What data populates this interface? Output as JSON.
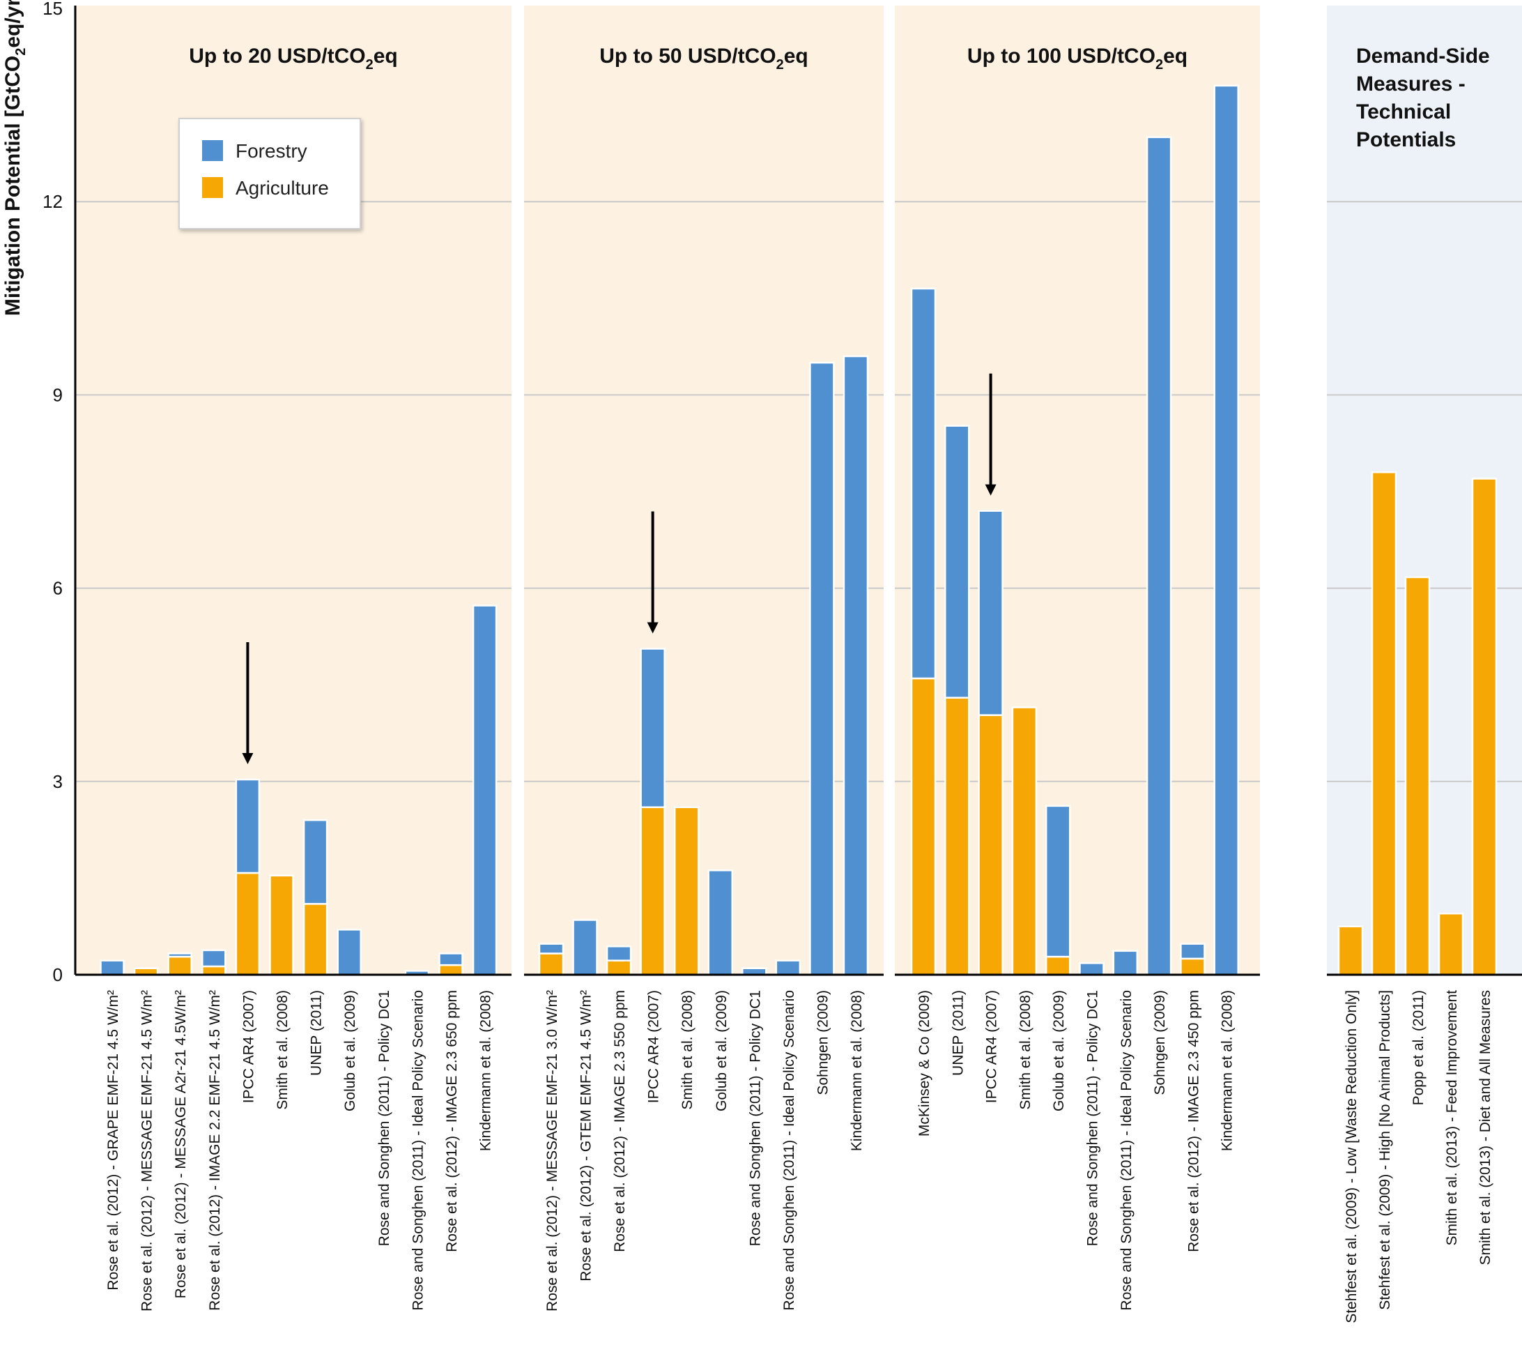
{
  "chart_data": {
    "type": "bar",
    "stacked": true,
    "ylabel_parts": [
      "Mitigation Potential [GtCO",
      "2",
      "eq/yr]"
    ],
    "ylim": [
      0,
      15
    ],
    "yticks": [
      0,
      3,
      6,
      9,
      12,
      15
    ],
    "grid": true,
    "legend": {
      "placement": "top-left",
      "entries": [
        {
          "name": "Forestry",
          "color": "#5090d0"
        },
        {
          "name": "Agriculture",
          "color": "#f6a704"
        }
      ]
    },
    "colors": {
      "forestry": "#5090d0",
      "agriculture": "#f6a704",
      "supply_bg": "#fdf1e1",
      "demand_bg": "#edf2f8"
    },
    "panels": [
      {
        "id": "usd20",
        "title_parts": [
          "Up to 20 USD/tCO",
          "2",
          "eq"
        ],
        "background": "supply",
        "arrow_on": "IPCC AR4 (2007)",
        "bars": [
          {
            "label": "Rose et al. (2012) - GRAPE EMF-21 4.5 W/m²",
            "agriculture": 0.0,
            "forestry": 0.22
          },
          {
            "label": "Rose et al. (2012) - MESSAGE EMF-21 4.5 W/m²",
            "agriculture": 0.1,
            "forestry": 0.0
          },
          {
            "label": "Rose et al. (2012) - MESSAGE A2r-21 4.5W/m²",
            "agriculture": 0.28,
            "forestry": 0.05
          },
          {
            "label": "Rose et al. (2012) - IMAGE 2.2 EMF-21 4.5 W/m²",
            "agriculture": 0.13,
            "forestry": 0.25
          },
          {
            "label": "IPCC AR4 (2007)",
            "agriculture": 1.58,
            "forestry": 1.45
          },
          {
            "label": "Smith et al. (2008)",
            "agriculture": 1.54,
            "forestry": 0.0
          },
          {
            "label": "UNEP (2011)",
            "agriculture": 1.1,
            "forestry": 1.3
          },
          {
            "label": "Golub et al. (2009)",
            "agriculture": 0.0,
            "forestry": 0.7
          },
          {
            "label": "Rose and Songhen (2011) - Policy DC1",
            "agriculture": 0.0,
            "forestry": 0.0
          },
          {
            "label": "Rose and Songhen (2011) - Ideal Policy Scenario",
            "agriculture": 0.0,
            "forestry": 0.06
          },
          {
            "label": "Rose et al. (2012) - IMAGE 2.3 650 ppm",
            "agriculture": 0.15,
            "forestry": 0.18
          },
          {
            "label": "Kindermann et al. (2008)",
            "agriculture": 0.0,
            "forestry": 5.73
          }
        ]
      },
      {
        "id": "usd50",
        "title_parts": [
          "Up to 50 USD/tCO",
          "2",
          "eq"
        ],
        "background": "supply",
        "arrow_on": "IPCC AR4 (2007)",
        "bars": [
          {
            "label": "Rose et al. (2012) - MESSAGE EMF-21 3.0 W/m²",
            "agriculture": 0.33,
            "forestry": 0.15
          },
          {
            "label": "Rose et al. (2012) - GTEM EMF-21 4.5 W/m²",
            "agriculture": 0.0,
            "forestry": 0.85
          },
          {
            "label": "Rose et al. (2012) - IMAGE 2.3 550 ppm",
            "agriculture": 0.22,
            "forestry": 0.22
          },
          {
            "label": "IPCC AR4 (2007)",
            "agriculture": 2.6,
            "forestry": 2.46
          },
          {
            "label": "Smith et al. (2008)",
            "agriculture": 2.6,
            "forestry": 0.0
          },
          {
            "label": "Golub et al. (2009)",
            "agriculture": 0.0,
            "forestry": 1.62
          },
          {
            "label": "Rose and Songhen (2011) - Policy DC1",
            "agriculture": 0.0,
            "forestry": 0.1
          },
          {
            "label": "Rose and Songhen (2011) - Ideal Policy Scenario",
            "agriculture": 0.0,
            "forestry": 0.22
          },
          {
            "label": "Sohngen (2009)",
            "agriculture": 0.0,
            "forestry": 9.5
          },
          {
            "label": "Kindermann et al. (2008)",
            "agriculture": 0.0,
            "forestry": 9.6
          }
        ]
      },
      {
        "id": "usd100",
        "title_parts": [
          "Up to 100 USD/tCO",
          "2",
          "eq"
        ],
        "background": "supply",
        "arrow_on": "IPCC AR4 (2007)",
        "bars": [
          {
            "label": "McKinsey & Co (2009)",
            "agriculture": 4.6,
            "forestry": 6.05
          },
          {
            "label": "UNEP (2011)",
            "agriculture": 4.3,
            "forestry": 4.22
          },
          {
            "label": "IPCC AR4 (2007)",
            "agriculture": 4.03,
            "forestry": 3.17
          },
          {
            "label": "Smith et al. (2008)",
            "agriculture": 4.15,
            "forestry": 0.0
          },
          {
            "label": "Golub et al. (2009)",
            "agriculture": 0.28,
            "forestry": 2.34
          },
          {
            "label": "Rose and Songhen (2011) - Policy DC1",
            "agriculture": 0.0,
            "forestry": 0.18
          },
          {
            "label": "Rose and Songhen (2011) - Ideal Policy Scenario",
            "agriculture": 0.0,
            "forestry": 0.37
          },
          {
            "label": "Sohngen (2009)",
            "agriculture": 0.0,
            "forestry": 13.0
          },
          {
            "label": "Rose et al. (2012) - IMAGE 2.3 450 ppm",
            "agriculture": 0.25,
            "forestry": 0.23
          },
          {
            "label": "Kindermann et al. (2008)",
            "agriculture": 0.0,
            "forestry": 13.8
          }
        ]
      },
      {
        "id": "demand",
        "title_lines": [
          "Demand-Side",
          "Measures -",
          "Technical",
          "Potentials"
        ],
        "background": "demand",
        "bars": [
          {
            "label": "Stehfest et al. (2009) - Low [Waste Reduction Only]",
            "agriculture": 0.75,
            "forestry": 0.0
          },
          {
            "label": "Stehfest et al. (2009) - High [No Animal Products]",
            "agriculture": 7.8,
            "forestry": 0.0
          },
          {
            "label": "Popp et al. (2011)",
            "agriculture": 6.17,
            "forestry": 0.0
          },
          {
            "label": "Smith et al. (2013) - Feed Improvement",
            "agriculture": 0.95,
            "forestry": 0.0
          },
          {
            "label": "Smith et al. (2013) - Diet and All Measures",
            "agriculture": 7.7,
            "forestry": 0.0
          }
        ]
      }
    ]
  }
}
